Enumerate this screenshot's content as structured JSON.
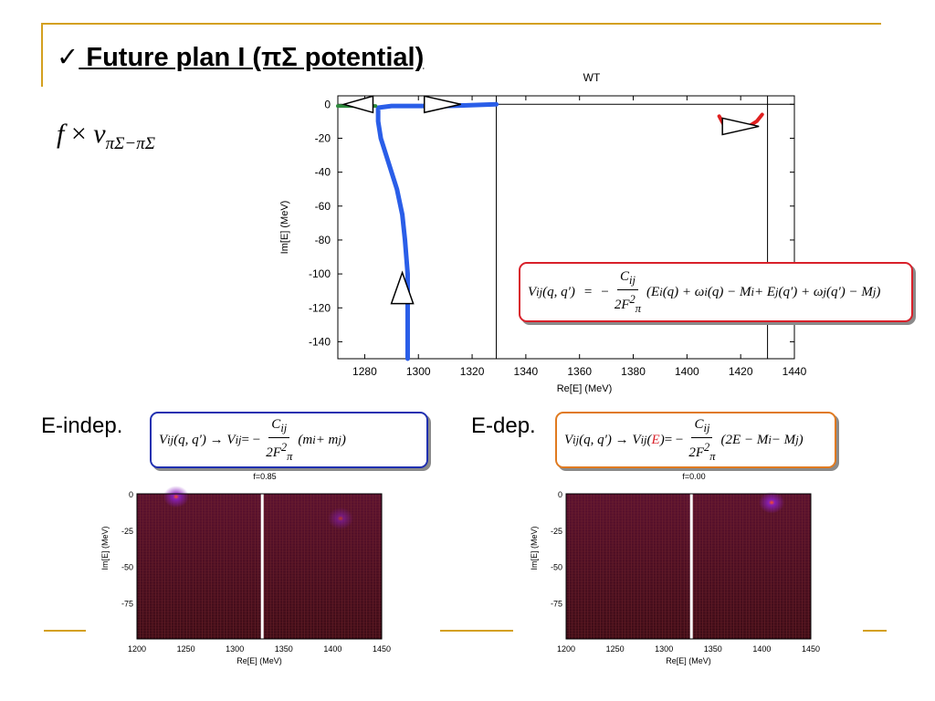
{
  "slide": {
    "checkmark": "✓",
    "title": " Future plan I (πΣ potential)",
    "f_symbol": "f",
    "times": "×",
    "v_symbol": "v",
    "v_subscript": "πΣ−πΣ",
    "label_indep": "E-indep.",
    "label_dep": "E-dep."
  },
  "equations": {
    "main": {
      "lhs": "V",
      "lhs_sub": "ij",
      "lhs_args": "(q, q′)",
      "eq": "=",
      "minus": "−",
      "num": "C",
      "num_sub": "ij",
      "den": "2F",
      "den_sub": "π",
      "den_sup": "2",
      "body": "(E",
      "body_sub1": "i",
      "body2": "(q) + ω",
      "body_sub2": "i",
      "body3": "(q) − M",
      "body_sub3": "i",
      "body4": " + E",
      "body_sub4": "j",
      "body5": "(q′) + ω",
      "body_sub5": "j",
      "body6": "(q′) − M",
      "body_sub6": "j",
      "body7": ")"
    },
    "indep": {
      "lhs": "V",
      "lhs_sub": "ij",
      "lhs_args": "(q, q′) → V",
      "rhs_sub": "ij",
      "eq": " = −",
      "num": "C",
      "num_sub": "ij",
      "den": "2F",
      "den_sub": "π",
      "den_sup": "2",
      "body": "(m",
      "body_sub1": "i",
      "body2": " + m",
      "body_sub2": "j",
      "body3": ")"
    },
    "dep": {
      "lhs": "V",
      "lhs_sub": "ij",
      "lhs_args": "(q, q′) → V",
      "rhs_sub": "ij",
      "rhs_open": "(",
      "rhs_E": "E",
      "rhs_close": ")",
      "eq": " = −",
      "num": "C",
      "num_sub": "ij",
      "den": "2F",
      "den_sub": "π",
      "den_sup": "2",
      "body": "(2E − M",
      "body_sub1": "i",
      "body2": " − M",
      "body_sub2": "j",
      "body3": ")"
    }
  },
  "colors": {
    "accent_rule": "#d4a020",
    "trajectory": "#2a5ee8",
    "green_segment": "#2e8b3e",
    "red_arc": "#e02020",
    "box_main": "#d8202a",
    "box_indep": "#2030b0",
    "box_dep": "#e07a20",
    "heatmap_bg": "#3a0a14",
    "heatmap_grid": "#7a2a30",
    "peak": "#8a20c0",
    "peak_core": "#ff5020"
  },
  "chart_data": [
    {
      "type": "line",
      "title": "WT",
      "xlabel": "Re[E] (MeV)",
      "ylabel": "Im[E] (MeV)",
      "xlim": [
        1270,
        1440
      ],
      "ylim": [
        -150,
        5
      ],
      "xticks": [
        1280,
        1300,
        1320,
        1340,
        1360,
        1380,
        1400,
        1420,
        1440
      ],
      "yticks": [
        0,
        -20,
        -40,
        -60,
        -80,
        -100,
        -120,
        -140
      ],
      "xtick_labels": [
        "1280",
        "1300",
        "1320",
        "1340",
        "1360",
        "1380",
        "1400",
        "1420",
        "1440"
      ],
      "ytick_labels": [
        "0",
        "-20",
        "-40",
        "-60",
        "-80",
        "-100",
        "-120",
        "-140"
      ],
      "vertical_lines": [
        1329,
        1430
      ],
      "horizontal_lines": [
        0
      ],
      "series": [
        {
          "color": "#2a5ee8",
          "x": [
            1329,
            1310,
            1290,
            1285,
            1285,
            1286,
            1289,
            1292,
            1294,
            1295,
            1296,
            1296,
            1296,
            1296,
            1296
          ],
          "y": [
            0,
            -1,
            -1,
            -2,
            -10,
            -20,
            -35,
            -50,
            -65,
            -80,
            -100,
            -115,
            -125,
            -140,
            -150
          ]
        },
        {
          "color": "#2e8b3e",
          "x": [
            1270,
            1284
          ],
          "y": [
            -1,
            -1
          ]
        },
        {
          "color": "#e02020",
          "x": [
            1412,
            1414,
            1418,
            1422,
            1426,
            1428
          ],
          "y": [
            -7,
            -13,
            -15,
            -14,
            -10,
            -6
          ]
        }
      ],
      "arrows": [
        {
          "x": 1279,
          "y": 0,
          "direction": "left"
        },
        {
          "x": 1309,
          "y": 0,
          "direction": "right"
        },
        {
          "x": 1294,
          "y": -110,
          "direction": "up"
        },
        {
          "x": 1420,
          "y": -13,
          "direction": "right"
        }
      ]
    },
    {
      "type": "heatmap",
      "title": "f=0.85",
      "xlabel": "Re[E] (MeV)",
      "ylabel": "Im[E] (MeV)",
      "xlim": [
        1200,
        1450
      ],
      "ylim": [
        -100,
        0
      ],
      "xtick_labels": [
        "1200",
        "1250",
        "1300",
        "1350",
        "1400",
        "1450"
      ],
      "ytick_labels": [
        "0",
        "-25",
        "-50",
        "-75"
      ],
      "xticks": [
        1200,
        1250,
        1300,
        1350,
        1400,
        1450
      ],
      "yticks": [
        0,
        -25,
        -50,
        -75
      ],
      "cut_x": 1328,
      "peaks": [
        {
          "x": 1240,
          "y": -2,
          "intensity": 1.0
        },
        {
          "x": 1408,
          "y": -17,
          "intensity": 0.6
        }
      ]
    },
    {
      "type": "heatmap",
      "title": "f=0.00",
      "xlabel": "Re[E] (MeV)",
      "ylabel": "Im[E] (MeV)",
      "xlim": [
        1200,
        1450
      ],
      "ylim": [
        -100,
        0
      ],
      "xtick_labels": [
        "1200",
        "1250",
        "1300",
        "1350",
        "1400",
        "1450"
      ],
      "ytick_labels": [
        "0",
        "-25",
        "-50",
        "-75"
      ],
      "xticks": [
        1200,
        1250,
        1300,
        1350,
        1400,
        1450
      ],
      "yticks": [
        0,
        -25,
        -50,
        -75
      ],
      "cut_x": 1328,
      "peaks": [
        {
          "x": 1410,
          "y": -6,
          "intensity": 1.0
        }
      ]
    }
  ]
}
